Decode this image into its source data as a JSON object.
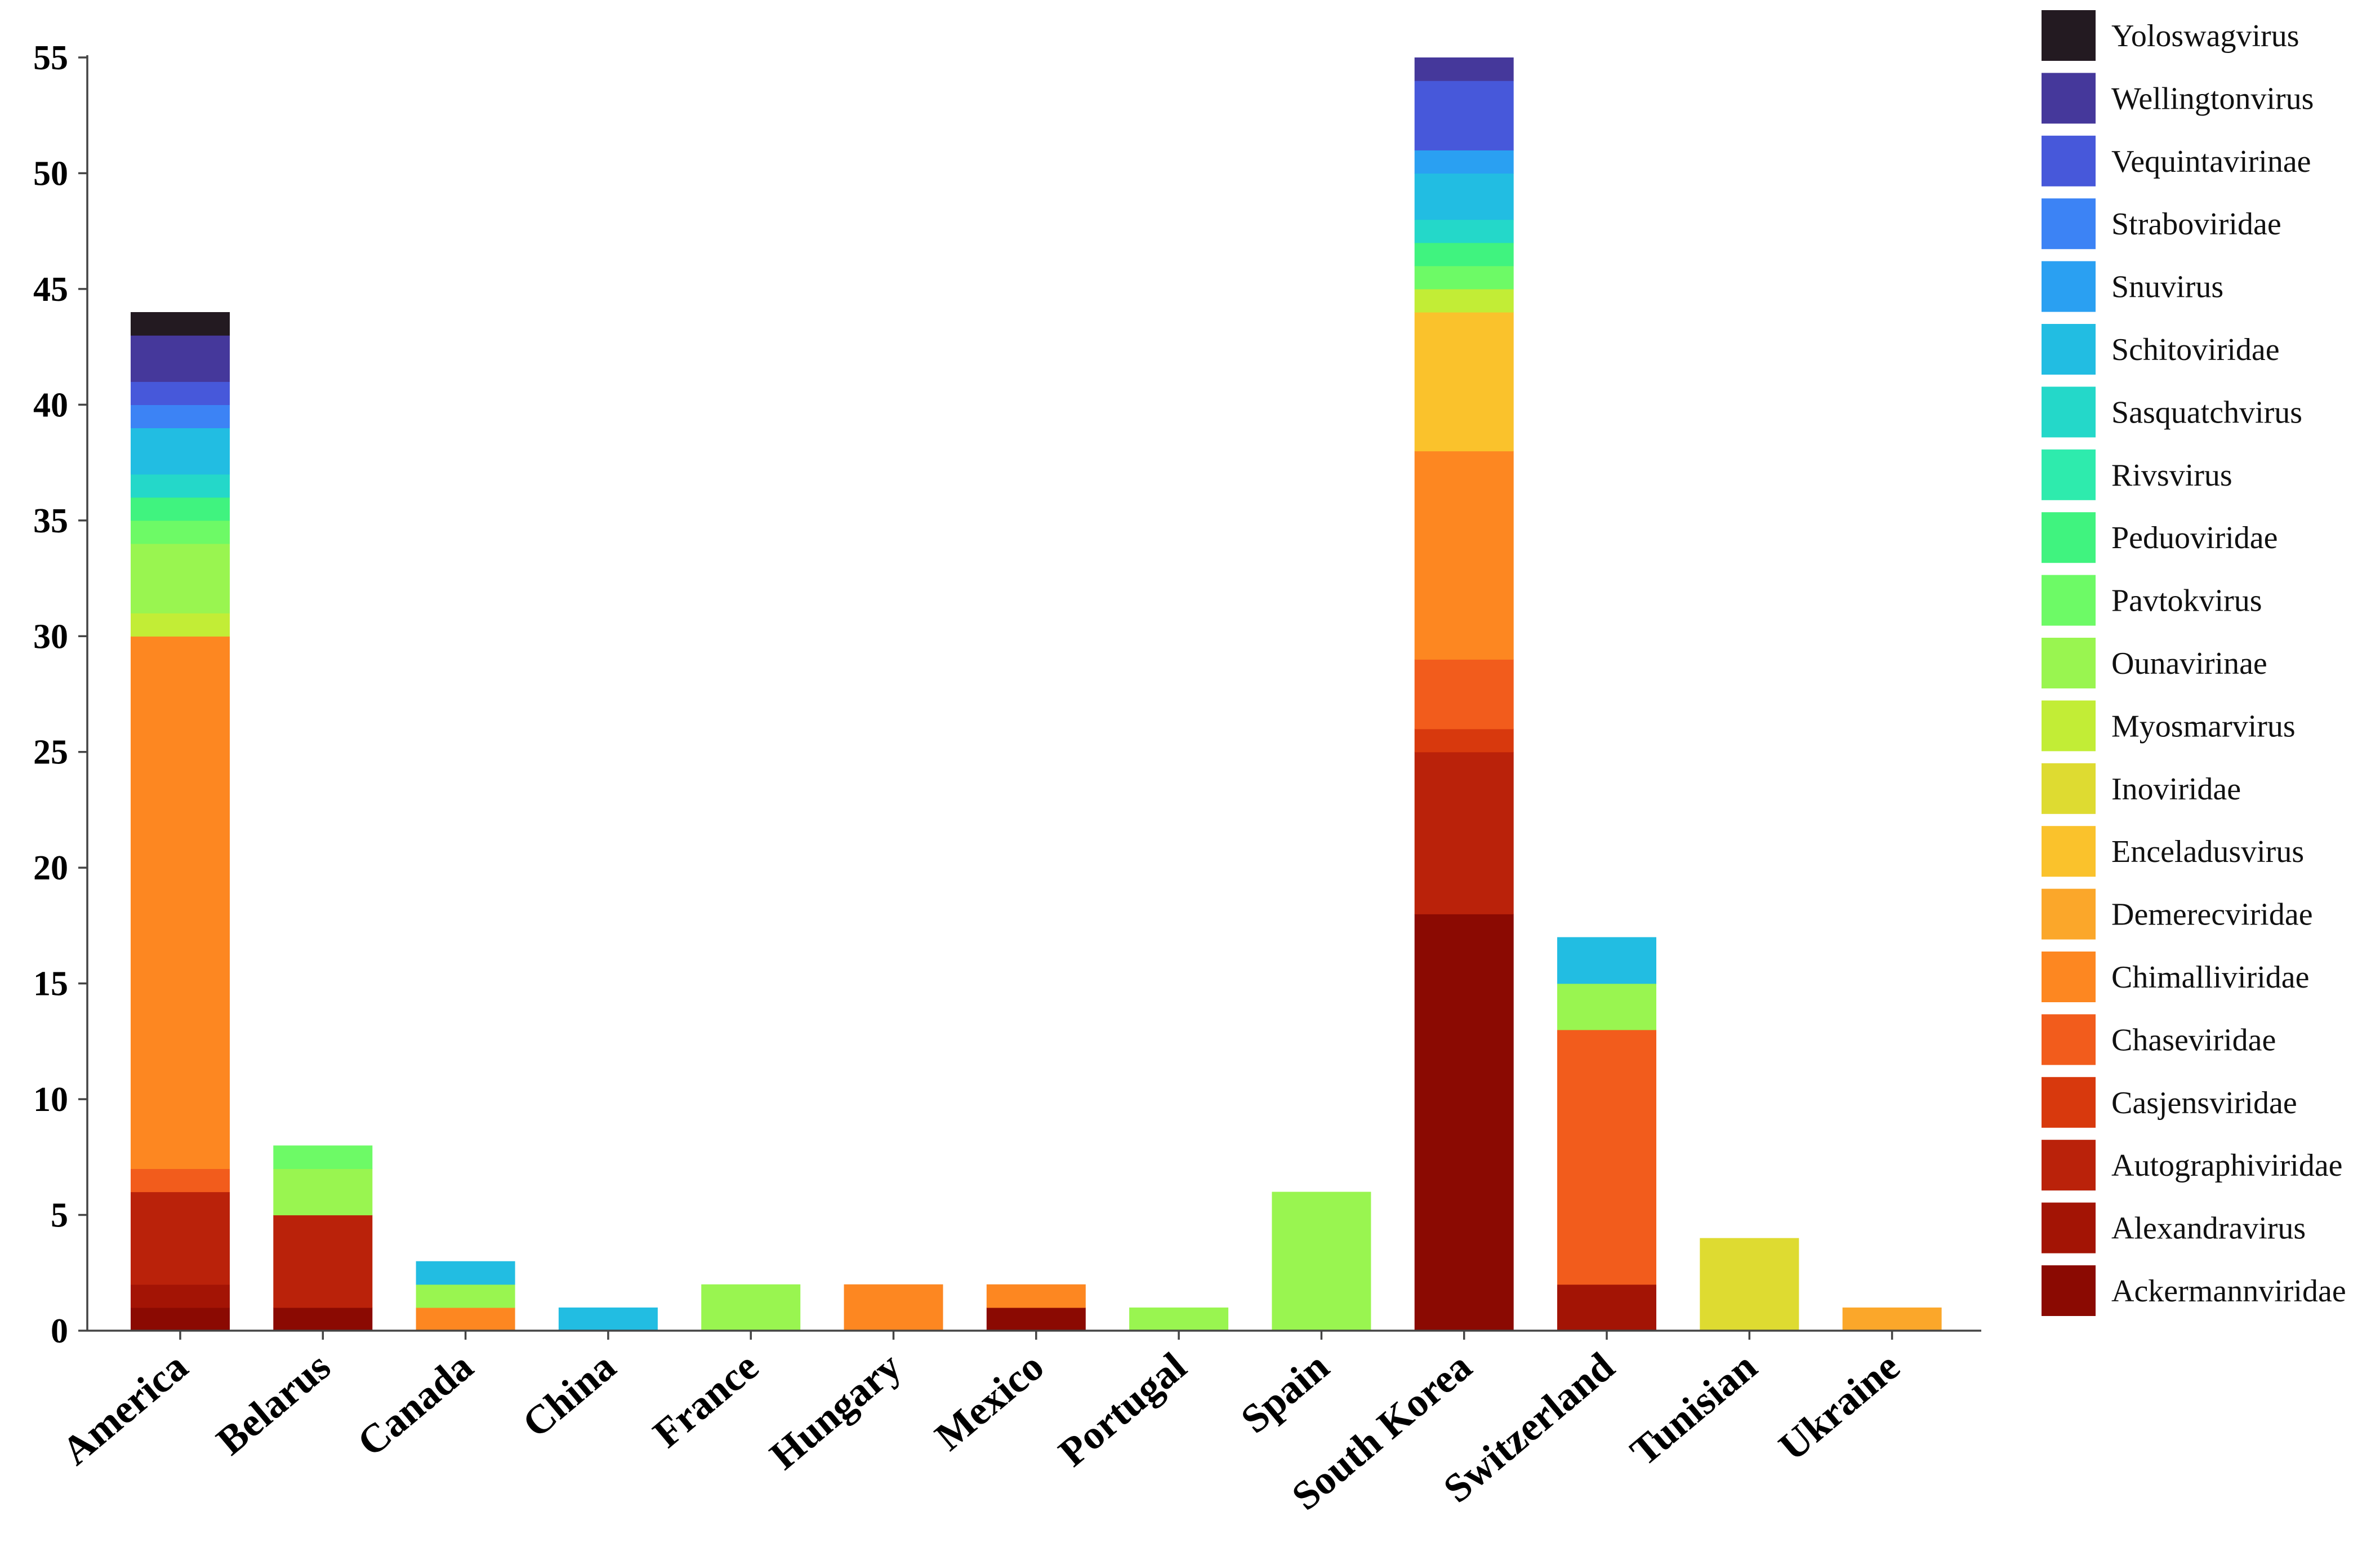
{
  "chart_data": {
    "type": "bar",
    "stacked": true,
    "title": "",
    "xlabel": "",
    "ylabel": "",
    "ylim": [
      0,
      55
    ],
    "yticks": [
      0,
      5,
      10,
      15,
      20,
      25,
      30,
      35,
      40,
      45,
      50,
      55
    ],
    "grid": false,
    "legend_position": "right",
    "categories": [
      "America",
      "Belarus",
      "Canada",
      "China",
      "France",
      "Hungary",
      "Mexico",
      "Portugal",
      "Spain",
      "South Korea",
      "Switzerland",
      "Tunisian",
      "Ukraine"
    ],
    "series": [
      {
        "name": "Ackermannviridae",
        "color": "#8b0a02",
        "values": [
          1,
          1,
          0,
          0,
          0,
          0,
          1,
          0,
          0,
          18,
          0,
          0,
          0
        ]
      },
      {
        "name": "Alexandravirus",
        "color": "#a31405",
        "values": [
          1,
          0,
          0,
          0,
          0,
          0,
          0,
          0,
          0,
          0,
          2,
          0,
          0
        ]
      },
      {
        "name": "Autographiviridae",
        "color": "#ba220a",
        "values": [
          4,
          4,
          0,
          0,
          0,
          0,
          0,
          0,
          0,
          7,
          0,
          0,
          0
        ]
      },
      {
        "name": "Casjensviridae",
        "color": "#d8390d",
        "values": [
          0,
          0,
          0,
          0,
          0,
          0,
          0,
          0,
          0,
          1,
          0,
          0,
          0
        ]
      },
      {
        "name": "Chaseviridae",
        "color": "#f25c1c",
        "values": [
          1,
          0,
          0,
          0,
          0,
          0,
          0,
          0,
          0,
          3,
          11,
          0,
          0
        ]
      },
      {
        "name": "Chimalliviridae",
        "color": "#fd8721",
        "values": [
          23,
          0,
          1,
          0,
          0,
          2,
          1,
          0,
          0,
          9,
          0,
          0,
          0
        ]
      },
      {
        "name": "Demerecviridae",
        "color": "#fba72a",
        "values": [
          0,
          0,
          0,
          0,
          0,
          0,
          0,
          0,
          0,
          0,
          0,
          0,
          1
        ]
      },
      {
        "name": "Enceladusvirus",
        "color": "#fac22c",
        "values": [
          0,
          0,
          0,
          0,
          0,
          0,
          0,
          0,
          0,
          6,
          0,
          0,
          0
        ]
      },
      {
        "name": "Inoviridae",
        "color": "#dedb31",
        "values": [
          0,
          0,
          0,
          0,
          0,
          0,
          0,
          0,
          0,
          0,
          0,
          4,
          0
        ]
      },
      {
        "name": "Myosmarvirus",
        "color": "#c2ed36",
        "values": [
          1,
          0,
          0,
          0,
          0,
          0,
          0,
          0,
          0,
          1,
          0,
          0,
          0
        ]
      },
      {
        "name": "Ounavirinae",
        "color": "#99f550",
        "values": [
          3,
          2,
          1,
          0,
          2,
          0,
          0,
          1,
          6,
          0,
          2,
          0,
          0
        ]
      },
      {
        "name": "Pavtokvirus",
        "color": "#6dfa66",
        "values": [
          1,
          1,
          0,
          0,
          0,
          0,
          0,
          0,
          0,
          1,
          0,
          0,
          0
        ]
      },
      {
        "name": "Peduoviridae",
        "color": "#40f37f",
        "values": [
          1,
          0,
          0,
          0,
          0,
          0,
          0,
          0,
          0,
          1,
          0,
          0,
          0
        ]
      },
      {
        "name": "Rivsvirus",
        "color": "#2eebad",
        "values": [
          0,
          0,
          0,
          0,
          0,
          0,
          0,
          0,
          0,
          0,
          0,
          0,
          0
        ]
      },
      {
        "name": "Sasquatchvirus",
        "color": "#24d8c9",
        "values": [
          1,
          0,
          0,
          0,
          0,
          0,
          0,
          0,
          0,
          1,
          0,
          0,
          0
        ]
      },
      {
        "name": "Schitoviridae",
        "color": "#22bde2",
        "values": [
          2,
          0,
          1,
          1,
          0,
          0,
          0,
          0,
          0,
          2,
          2,
          0,
          0
        ]
      },
      {
        "name": "Snuvirus",
        "color": "#2aa0f2",
        "values": [
          0,
          0,
          0,
          0,
          0,
          0,
          0,
          0,
          0,
          1,
          0,
          0,
          0
        ]
      },
      {
        "name": "Straboviridae",
        "color": "#3c83f5",
        "values": [
          1,
          0,
          0,
          0,
          0,
          0,
          0,
          0,
          0,
          0,
          0,
          0,
          0
        ]
      },
      {
        "name": "Vequintavirinae",
        "color": "#4758da",
        "values": [
          1,
          0,
          0,
          0,
          0,
          0,
          0,
          0,
          0,
          3,
          0,
          0,
          0
        ]
      },
      {
        "name": "Wellingtonvirus",
        "color": "#45389b",
        "values": [
          2,
          0,
          0,
          0,
          0,
          0,
          0,
          0,
          0,
          1,
          0,
          0,
          0
        ]
      },
      {
        "name": "Yoloswagvirus",
        "color": "#231a21",
        "values": [
          1,
          0,
          0,
          0,
          0,
          0,
          0,
          0,
          0,
          0,
          0,
          0,
          0
        ]
      }
    ]
  }
}
